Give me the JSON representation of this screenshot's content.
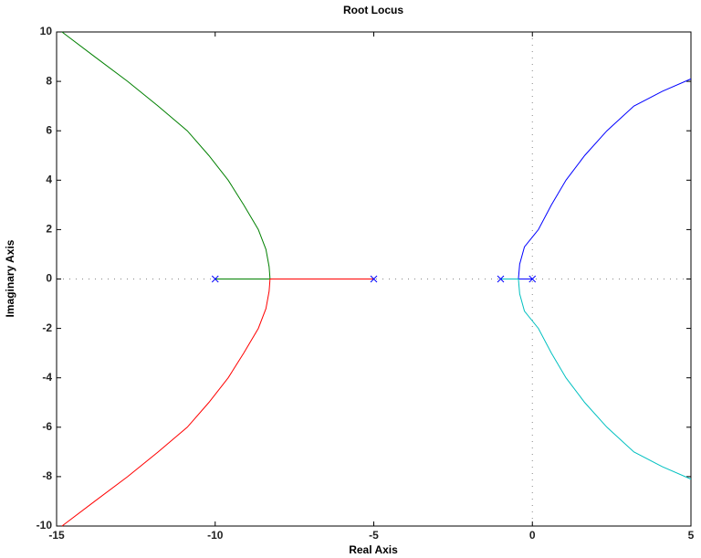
{
  "chart_data": {
    "type": "line",
    "title": "Root Locus",
    "xlabel": "Real Axis",
    "ylabel": "Imaginary Axis",
    "xlim": [
      -15,
      5
    ],
    "ylim": [
      -10,
      10
    ],
    "xticks": [
      -15,
      -10,
      -5,
      0,
      5
    ],
    "yticks": [
      -10,
      -8,
      -6,
      -4,
      -2,
      0,
      2,
      4,
      6,
      8,
      10
    ],
    "zero_lines": true,
    "series": [
      {
        "color": "#008000",
        "x": [
          -10,
          -8.27,
          -8.3,
          -8.4,
          -8.64,
          -9.1,
          -9.59,
          -10.2,
          -10.88,
          -11.8,
          -12.76,
          -13.8,
          -14.83
        ],
        "values": [
          0,
          0,
          0.5,
          1.2,
          2,
          3,
          4,
          5,
          6,
          7,
          8,
          9,
          10
        ]
      },
      {
        "color": "#ff0000",
        "x": [
          -5,
          -8.27,
          -8.3,
          -8.4,
          -8.64,
          -9.1,
          -9.59,
          -10.2,
          -10.88,
          -11.8,
          -12.76,
          -13.8,
          -14.83
        ],
        "values": [
          0,
          0,
          -0.5,
          -1.2,
          -2,
          -3,
          -4,
          -5,
          -6,
          -7,
          -8,
          -9,
          -10
        ]
      },
      {
        "color": "#0000ff",
        "x": [
          0,
          -0.44,
          -0.4,
          -0.25,
          0.19,
          0.6,
          1.06,
          1.65,
          2.35,
          3.2,
          4.1,
          5
        ],
        "values": [
          0,
          0,
          0.6,
          1.3,
          2,
          3,
          4,
          5,
          6,
          7,
          7.6,
          8.1
        ]
      },
      {
        "color": "#00c0c0",
        "x": [
          -1,
          -0.44,
          -0.4,
          -0.25,
          0.19,
          0.6,
          1.06,
          1.65,
          2.35,
          3.2,
          4.1,
          5
        ],
        "values": [
          0,
          0,
          -0.6,
          -1.3,
          -2,
          -3,
          -4,
          -5,
          -6,
          -7,
          -7.6,
          -8.1
        ]
      },
      {
        "color": "#0000ff",
        "marker": "x",
        "x": [
          -10,
          -5,
          -1,
          0
        ],
        "values": [
          0,
          0,
          0,
          0
        ]
      }
    ]
  }
}
